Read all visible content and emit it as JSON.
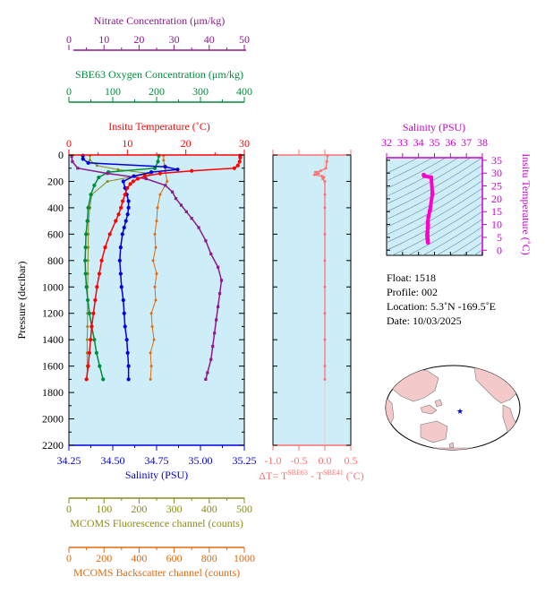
{
  "chart_data": [
    {
      "type": "line",
      "panel": "main-profile",
      "ylabel": "Pressure (decibar)",
      "y_ticks": [
        "0",
        "200",
        "400",
        "600",
        "800",
        "1000",
        "1200",
        "1400",
        "1600",
        "1800",
        "2000",
        "2200"
      ],
      "y_range": [
        0,
        2200
      ],
      "y_inverted": true,
      "grid": false,
      "background": "#cdeef8",
      "axes": {
        "salinity": {
          "label": "Salinity (PSU)",
          "color": "#0000dd",
          "range": [
            34.25,
            35.25
          ],
          "ticks": [
            "34.25",
            "34.50",
            "34.75",
            "35.00",
            "35.25"
          ]
        },
        "temperature": {
          "label": "Insitu Temperature (˚C)",
          "color": "#ff0000",
          "range": [
            0,
            30
          ],
          "ticks": [
            "0",
            "10",
            "20",
            "30"
          ]
        },
        "oxygen": {
          "label": "SBE63 Oxygen Concentration (μm/kg)",
          "color": "#008c3a",
          "range": [
            0,
            400
          ],
          "ticks": [
            "0",
            "100",
            "200",
            "300",
            "400"
          ]
        },
        "nitrate": {
          "label": "Nitrate Concentration (μm/kg)",
          "color": "#8b1a8b",
          "range": [
            0,
            50
          ],
          "ticks": [
            "0",
            "10",
            "20",
            "30",
            "40",
            "50"
          ]
        },
        "fluorescence": {
          "label": "MCOMS Fluorescence channel (counts)",
          "color": "#8b8b1a",
          "range": [
            0,
            500
          ],
          "ticks": [
            "0",
            "100",
            "200",
            "300",
            "400",
            "500"
          ]
        },
        "backscatter": {
          "label": "MCOMS Backscatter channel (counts)",
          "color": "#e06a10",
          "range": [
            0,
            1000
          ],
          "ticks": [
            "0",
            "200",
            "400",
            "600",
            "800",
            "1000"
          ]
        }
      },
      "series": [
        {
          "key": "temperature",
          "color": "#ff0000",
          "pressure": [
            5,
            20,
            50,
            80,
            100,
            120,
            140,
            160,
            180,
            200,
            220,
            250,
            300,
            350,
            400,
            450,
            500,
            600,
            700,
            800,
            900,
            1000,
            1100,
            1200,
            1300,
            1400,
            1500,
            1600,
            1700
          ],
          "values": [
            29.3,
            29.3,
            29.2,
            28.9,
            28.3,
            21.0,
            15.6,
            13.0,
            11.8,
            11.0,
            10.5,
            10.0,
            9.6,
            9.2,
            8.9,
            8.5,
            8.0,
            7.0,
            6.2,
            5.6,
            5.2,
            4.8,
            4.5,
            4.2,
            3.9,
            3.7,
            3.5,
            3.3,
            3.0
          ]
        },
        {
          "key": "salinity",
          "color": "#0000dd",
          "pressure": [
            5,
            30,
            60,
            90,
            110,
            130,
            160,
            200,
            250,
            300,
            350,
            400,
            450,
            500,
            550,
            600,
            700,
            800,
            900,
            1000,
            1100,
            1200,
            1300,
            1400,
            1500,
            1600,
            1700
          ],
          "values": [
            34.33,
            34.33,
            34.36,
            34.8,
            34.87,
            34.72,
            34.62,
            34.56,
            34.57,
            34.58,
            34.59,
            34.59,
            34.585,
            34.575,
            34.565,
            34.555,
            34.545,
            34.54,
            34.545,
            34.55,
            34.56,
            34.565,
            34.57,
            34.58,
            34.585,
            34.59,
            34.59
          ]
        },
        {
          "key": "nitrate",
          "color": "#8b1a8b",
          "pressure": [
            10,
            50,
            100,
            140,
            180,
            230,
            280,
            330,
            380,
            430,
            480,
            550,
            650,
            750,
            850,
            950,
            1050,
            1150,
            1250,
            1350,
            1450,
            1550,
            1650,
            1700
          ],
          "values": [
            0.8,
            1.0,
            2.5,
            11.0,
            22.0,
            27.5,
            29.5,
            30.5,
            32.0,
            33.5,
            35.0,
            37.0,
            39.0,
            40.5,
            42.5,
            43.5,
            43.0,
            42.5,
            42.0,
            41.5,
            41.0,
            40.5,
            39.5,
            39.0
          ]
        },
        {
          "key": "oxygen",
          "color": "#008c3a",
          "pressure": [
            5,
            50,
            100,
            130,
            170,
            230,
            300,
            400,
            500,
            600,
            700,
            800,
            900,
            1000,
            1100,
            1200,
            1300,
            1400,
            1500,
            1600,
            1700
          ],
          "values": [
            205,
            203,
            196,
            90,
            68,
            58,
            50,
            44,
            42,
            39,
            38,
            37,
            38,
            40,
            43,
            47,
            52,
            58,
            63,
            70,
            78
          ]
        },
        {
          "key": "fluorescence",
          "color": "#8b8b1a",
          "pressure": [
            5,
            40,
            80,
            110,
            140,
            200,
            300,
            400,
            500,
            600,
            700,
            800,
            900,
            1000,
            1100,
            1200,
            1300,
            1400,
            1500,
            1600,
            1700
          ],
          "values": [
            60,
            60,
            80,
            140,
            230,
            110,
            65,
            60,
            56,
            55,
            55,
            54,
            54,
            53,
            53,
            53,
            53,
            52,
            52,
            52,
            52
          ]
        },
        {
          "key": "backscatter",
          "color": "#e06a10",
          "pressure": [
            5,
            40,
            80,
            120,
            200,
            300,
            400,
            500,
            600,
            700,
            800,
            900,
            1000,
            1100,
            1200,
            1300,
            1400,
            1500,
            1600,
            1700
          ],
          "values": [
            540,
            540,
            545,
            550,
            560,
            520,
            505,
            500,
            490,
            495,
            480,
            500,
            490,
            495,
            470,
            475,
            485,
            465,
            470,
            465
          ]
        }
      ]
    },
    {
      "type": "line",
      "panel": "temperature-difference",
      "xlabel": "ΔT= T",
      "xlabel_sup1": "SBE63",
      "xlabel_mid": " - T",
      "xlabel_sup2": "SBE41",
      "xlabel_unit": " (˚C)",
      "color": "#ff7070",
      "x_range": [
        -1.0,
        0.5
      ],
      "x_ticks": [
        "-1.0",
        "-0.5",
        "0.0",
        "0.5"
      ],
      "series": [
        {
          "pressure": [
            5,
            50,
            100,
            120,
            130,
            140,
            150,
            160,
            170,
            180,
            200,
            300,
            400,
            600,
            800,
            1000,
            1200,
            1400,
            1600,
            1700
          ],
          "values": [
            0.05,
            0.04,
            0.02,
            -0.08,
            -0.18,
            -0.12,
            -0.2,
            -0.06,
            -0.02,
            -0.04,
            0.0,
            0.0,
            0.0,
            0.0,
            0.0,
            0.0,
            0.0,
            0.0,
            0.0,
            0.0
          ]
        }
      ]
    },
    {
      "type": "scatter",
      "panel": "ts-diagram",
      "title": "Salinity (PSU)",
      "ylabel": "Insitu Temperature (˚C)",
      "color": "#ff00cc",
      "x_range": [
        32,
        38
      ],
      "x_ticks": [
        "32",
        "33",
        "34",
        "35",
        "36",
        "37",
        "38"
      ],
      "y_range": [
        -2,
        36
      ],
      "y_ticks": [
        "0",
        "5",
        "10",
        "15",
        "20",
        "25",
        "30",
        "35"
      ],
      "salinity": [
        34.33,
        34.34,
        34.36,
        34.8,
        34.87,
        34.72,
        34.62,
        34.58,
        34.59,
        34.59,
        34.58,
        34.56,
        34.55,
        34.55,
        34.56,
        34.57,
        34.58,
        34.59
      ],
      "temperature": [
        29.3,
        29.2,
        28.9,
        28.3,
        22.0,
        15.6,
        13.0,
        11.0,
        10.0,
        9.2,
        8.5,
        7.0,
        6.2,
        5.6,
        4.8,
        4.2,
        3.7,
        3.0
      ]
    }
  ],
  "float_info": {
    "float": "Float:  1518",
    "profile": "Profile:  002",
    "location": "Location:  5.3˚N  -169.5˚E",
    "date": "Date:  10/03/2025"
  },
  "map": {
    "marker_lat": 5.3,
    "marker_lon": -169.5,
    "land_color": "#f3c9c9",
    "ocean_color": "#ffffff",
    "marker_color": "#0000dd"
  }
}
